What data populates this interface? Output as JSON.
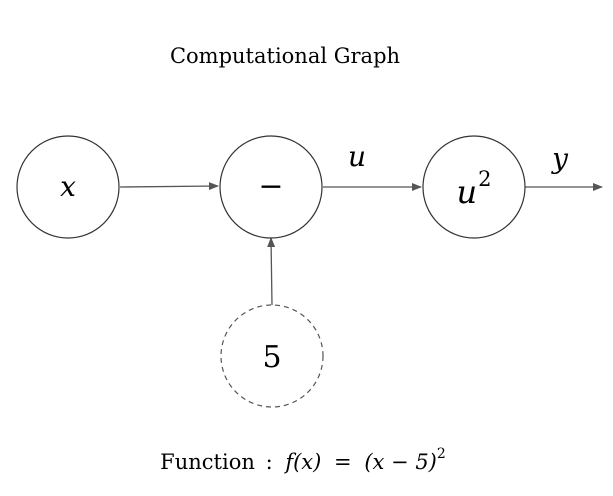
{
  "title": "Computational Graph",
  "nodes": {
    "input_x": {
      "label": "x",
      "style": "solid"
    },
    "subtract": {
      "label": "−",
      "style": "solid"
    },
    "constant": {
      "label": "5",
      "style": "dashed"
    },
    "square": {
      "base": "u",
      "exponent": "2",
      "style": "solid"
    }
  },
  "edges": {
    "x_to_subtract": {
      "label": ""
    },
    "constant_to_subtract": {
      "label": ""
    },
    "subtract_to_square": {
      "label": "u"
    },
    "square_to_output": {
      "label": "y"
    }
  },
  "function": {
    "prefix": "Function",
    "separator": ":",
    "lhs": "f(x)",
    "equals": "=",
    "rhs": "(x − 5)",
    "exponent": "2"
  },
  "colors": {
    "stroke": "#333333",
    "arrow": "#555555",
    "text": "#111111"
  }
}
